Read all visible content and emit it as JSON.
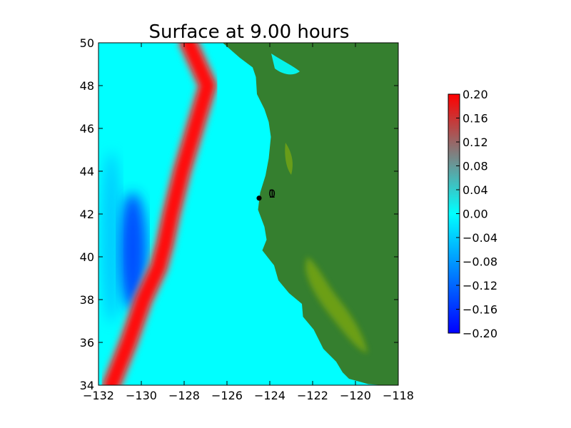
{
  "chart_data": {
    "type": "heatmap",
    "title": "Surface at 9.00 hours",
    "xlabel": "",
    "ylabel": "",
    "xlim": [
      -132,
      -118
    ],
    "ylim": [
      34,
      50
    ],
    "x_ticks": [
      -132,
      -130,
      -128,
      -126,
      -124,
      -122,
      -120,
      -118
    ],
    "y_ticks": [
      34,
      36,
      38,
      40,
      42,
      44,
      46,
      48,
      50
    ],
    "x_tick_labels": [
      "−132",
      "−130",
      "−128",
      "−126",
      "−124",
      "−122",
      "−120",
      "−118"
    ],
    "y_tick_labels": [
      "34",
      "36",
      "38",
      "40",
      "42",
      "44",
      "46",
      "48",
      "50"
    ],
    "grid": false,
    "colorbar": {
      "range": [
        -0.2,
        0.2
      ],
      "ticks": [
        0.2,
        0.16,
        0.12,
        0.08,
        0.04,
        0.0,
        -0.04,
        -0.08,
        -0.12,
        -0.16,
        -0.2
      ],
      "tick_labels": [
        "0.20",
        "0.16",
        "0.12",
        "0.08",
        "0.04",
        "0.00",
        "−0.04",
        "−0.08",
        "−0.12",
        "−0.16",
        "−0.20"
      ],
      "colors": [
        "#0000ff",
        "#00ffff",
        "#ff0000"
      ]
    },
    "land_color": "#357f2f",
    "lowland_color": "#7faa10",
    "ocean_color": "#00ffff",
    "coastline": [
      [
        -126.2,
        50.0
      ],
      [
        -125.4,
        49.3
      ],
      [
        -124.8,
        48.85
      ],
      [
        -124.65,
        48.4
      ],
      [
        -124.6,
        47.6
      ],
      [
        -124.25,
        46.9
      ],
      [
        -124.05,
        46.3
      ],
      [
        -123.95,
        45.6
      ],
      [
        -124.05,
        44.6
      ],
      [
        -124.2,
        43.8
      ],
      [
        -124.45,
        43.0
      ],
      [
        -124.55,
        42.2
      ],
      [
        -124.25,
        41.4
      ],
      [
        -124.15,
        40.8
      ],
      [
        -124.35,
        40.3
      ],
      [
        -123.8,
        39.6
      ],
      [
        -123.6,
        38.9
      ],
      [
        -123.1,
        38.3
      ],
      [
        -122.5,
        37.8
      ],
      [
        -122.45,
        37.2
      ],
      [
        -121.95,
        36.6
      ],
      [
        -121.5,
        35.7
      ],
      [
        -120.9,
        35.1
      ],
      [
        -120.6,
        34.6
      ],
      [
        -120.3,
        34.3
      ],
      [
        -119.4,
        34.05
      ],
      [
        -118.7,
        34.0
      ],
      [
        -118.0,
        34.0
      ]
    ],
    "wave_front": {
      "name": "",
      "peak_value": 0.2,
      "points": [
        [
          -131.4,
          34.0
        ],
        [
          -130.6,
          36.0
        ],
        [
          -129.9,
          38.0
        ],
        [
          -129.2,
          39.5
        ],
        [
          -128.9,
          40.6
        ],
        [
          -128.6,
          42.0
        ],
        [
          -128.1,
          44.0
        ],
        [
          -127.5,
          46.0
        ],
        [
          -126.9,
          48.0
        ],
        [
          -127.8,
          50.0
        ]
      ]
    },
    "trough": {
      "name": "",
      "min_value": -0.2,
      "center": [
        -130.4,
        40.6
      ],
      "span_lat": [
        37.5,
        43.0
      ]
    },
    "gauges": [
      {
        "lon": -124.5,
        "lat": 42.74,
        "label": "0"
      },
      {
        "lon": -124.5,
        "lat": 42.74,
        "label": "1"
      }
    ]
  }
}
